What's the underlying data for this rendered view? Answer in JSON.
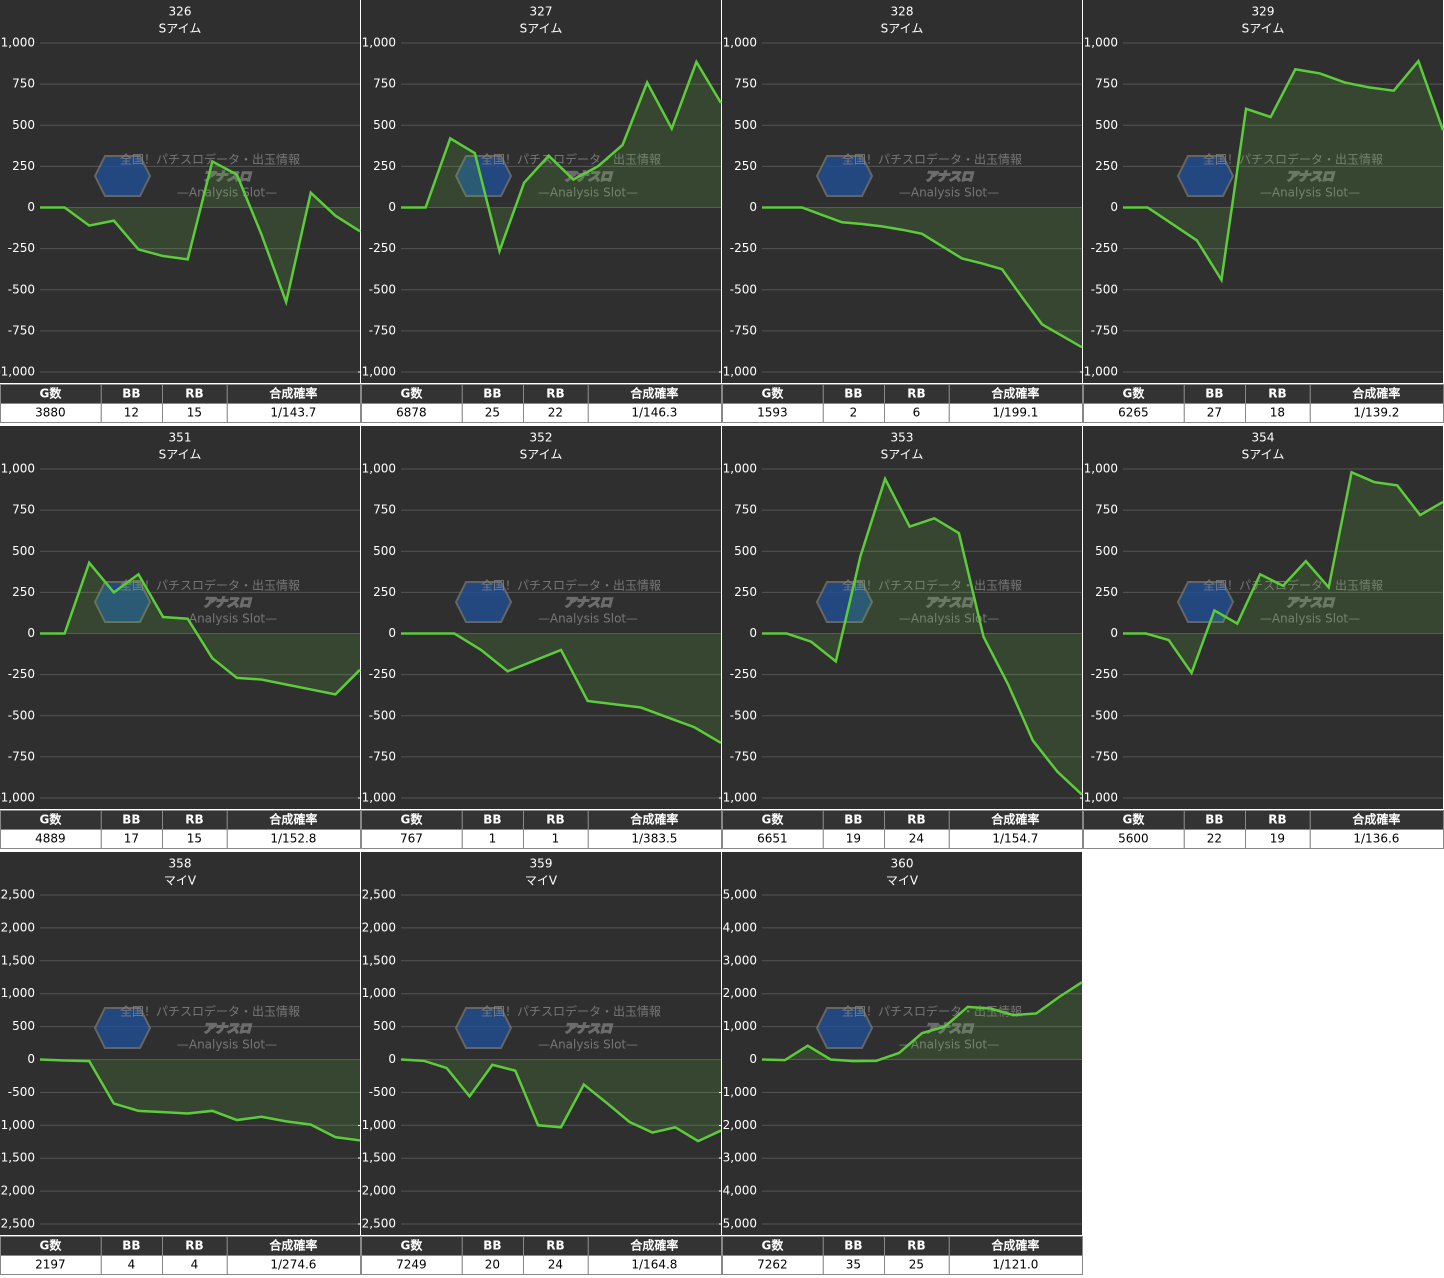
{
  "watermark": {
    "top": "全国！パチスロデータ・出玉情報",
    "logo": "アナスロ",
    "bottom": "—Analysis Slot—"
  },
  "table_headers": [
    "G数",
    "BB",
    "RB",
    "合成確率"
  ],
  "chart_data": [
    {
      "type": "line",
      "title": "326",
      "subtitle": "Sアイム",
      "color": "#5ccc3a",
      "zero_color": "#cc2222",
      "grid": true,
      "ylim": [
        -1000,
        1000
      ],
      "yticks": [
        {
          "value": 1000,
          "label": "1,000"
        },
        750,
        500,
        250,
        0,
        -250,
        -500,
        -750,
        {
          "value": -1000,
          "label": "-1,000"
        }
      ],
      "values": [
        0,
        0,
        -110,
        -80,
        -255,
        -295,
        -315,
        280,
        200,
        -165,
        -575,
        90,
        -50,
        -145
      ]
    },
    {
      "type": "line",
      "title": "327",
      "subtitle": "Sアイム",
      "color": "#5ccc3a",
      "zero_color": "#cc2222",
      "grid": true,
      "ylim": [
        -1000,
        1000
      ],
      "yticks": [
        {
          "value": 1000,
          "label": "1,000"
        },
        750,
        500,
        250,
        0,
        -250,
        -500,
        -750,
        {
          "value": -1000,
          "label": "-1,000"
        }
      ],
      "values": [
        0,
        0,
        420,
        330,
        -265,
        150,
        315,
        170,
        250,
        380,
        760,
        480,
        885,
        635
      ]
    },
    {
      "type": "line",
      "title": "328",
      "subtitle": "Sアイム",
      "color": "#5ccc3a",
      "zero_color": "#cc2222",
      "grid": true,
      "ylim": [
        -1000,
        1000
      ],
      "yticks": [
        {
          "value": 1000,
          "label": "1,000"
        },
        750,
        500,
        250,
        0,
        -250,
        -500,
        -750,
        {
          "value": -1000,
          "label": "-1,000"
        }
      ],
      "values": [
        0,
        0,
        0,
        -45,
        -90,
        -100,
        -115,
        -135,
        -160,
        -235,
        -310,
        -340,
        -375,
        -545,
        -710,
        -780,
        -850
      ]
    },
    {
      "type": "line",
      "title": "329",
      "subtitle": "Sアイム",
      "color": "#5ccc3a",
      "zero_color": "#cc2222",
      "grid": true,
      "ylim": [
        -1000,
        1000
      ],
      "yticks": [
        {
          "value": 1000,
          "label": "1,000"
        },
        750,
        500,
        250,
        0,
        -250,
        -500,
        -750,
        {
          "value": -1000,
          "label": "-1,000"
        }
      ],
      "values": [
        0,
        0,
        -100,
        -200,
        -440,
        600,
        550,
        840,
        815,
        760,
        730,
        710,
        890,
        470
      ]
    },
    {
      "type": "line",
      "title": "351",
      "subtitle": "Sアイム",
      "color": "#5ccc3a",
      "zero_color": "#cc2222",
      "grid": true,
      "ylim": [
        -1000,
        1000
      ],
      "yticks": [
        {
          "value": 1000,
          "label": "1,000"
        },
        750,
        500,
        250,
        0,
        -250,
        -500,
        -750,
        {
          "value": -1000,
          "label": "-1,000"
        }
      ],
      "values": [
        0,
        0,
        430,
        250,
        360,
        100,
        90,
        -150,
        -270,
        -280,
        -310,
        -340,
        -370,
        -220
      ]
    },
    {
      "type": "line",
      "title": "352",
      "subtitle": "Sアイム",
      "color": "#5ccc3a",
      "zero_color": "#cc2222",
      "grid": true,
      "ylim": [
        -1000,
        1000
      ],
      "yticks": [
        {
          "value": 1000,
          "label": "1,000"
        },
        750,
        500,
        250,
        0,
        -250,
        -500,
        -750,
        {
          "value": -1000,
          "label": "-1,000"
        }
      ],
      "values": [
        0,
        0,
        0,
        -100,
        -230,
        -165,
        -100,
        -410,
        -430,
        -450,
        -510,
        -570,
        -665
      ]
    },
    {
      "type": "line",
      "title": "353",
      "subtitle": "Sアイム",
      "color": "#5ccc3a",
      "zero_color": "#cc2222",
      "grid": true,
      "ylim": [
        -1000,
        1000
      ],
      "yticks": [
        {
          "value": 1000,
          "label": "1,000"
        },
        750,
        500,
        250,
        0,
        -250,
        -500,
        -750,
        {
          "value": -1000,
          "label": "-1,000"
        }
      ],
      "values": [
        0,
        0,
        -50,
        -170,
        470,
        940,
        650,
        700,
        610,
        -20,
        -310,
        -650,
        -840,
        -980
      ]
    },
    {
      "type": "line",
      "title": "354",
      "subtitle": "Sアイム",
      "color": "#5ccc3a",
      "zero_color": "#cc2222",
      "grid": true,
      "ylim": [
        -1000,
        1000
      ],
      "yticks": [
        {
          "value": 1000,
          "label": "1,000"
        },
        750,
        500,
        250,
        0,
        -250,
        -500,
        -750,
        {
          "value": -1000,
          "label": "-1,000"
        }
      ],
      "values": [
        0,
        0,
        -40,
        -240,
        140,
        60,
        360,
        290,
        440,
        280,
        980,
        920,
        900,
        720,
        800
      ]
    },
    {
      "type": "line",
      "title": "358",
      "subtitle": "マイV",
      "color": "#5ccc3a",
      "zero_color": "#cc2222",
      "grid": true,
      "ylim": [
        -2500,
        2500
      ],
      "yticks": [
        {
          "value": 2500,
          "label": "2,500"
        },
        {
          "value": 2000,
          "label": "2,000"
        },
        {
          "value": 1500,
          "label": "1,500"
        },
        {
          "value": 1000,
          "label": "1,000"
        },
        500,
        0,
        -500,
        {
          "value": -1000,
          "label": "-1,000"
        },
        {
          "value": -1500,
          "label": "-1,500"
        },
        {
          "value": -2000,
          "label": "-2,000"
        },
        {
          "value": -2500,
          "label": "-2,500"
        }
      ],
      "values": [
        0,
        -15,
        -25,
        -670,
        -780,
        -800,
        -820,
        -780,
        -920,
        -870,
        -940,
        -990,
        -1180,
        -1230
      ]
    },
    {
      "type": "line",
      "title": "359",
      "subtitle": "マイV",
      "color": "#5ccc3a",
      "zero_color": "#cc2222",
      "grid": true,
      "ylim": [
        -2500,
        2500
      ],
      "yticks": [
        {
          "value": 2500,
          "label": "2,500"
        },
        {
          "value": 2000,
          "label": "2,000"
        },
        {
          "value": 1500,
          "label": "1,500"
        },
        {
          "value": 1000,
          "label": "1,000"
        },
        500,
        0,
        -500,
        {
          "value": -1000,
          "label": "-1,000"
        },
        {
          "value": -1500,
          "label": "-1,500"
        },
        {
          "value": -2000,
          "label": "-2,000"
        },
        {
          "value": -2500,
          "label": "-2,500"
        }
      ],
      "values": [
        0,
        -20,
        -130,
        -560,
        -80,
        -170,
        -1000,
        -1030,
        -380,
        -660,
        -950,
        -1110,
        -1030,
        -1240,
        -1080
      ]
    },
    {
      "type": "line",
      "title": "360",
      "subtitle": "マイV",
      "color": "#5ccc3a",
      "zero_color": "#cc2222",
      "grid": true,
      "ylim": [
        -5000,
        5000
      ],
      "yticks": [
        {
          "value": 5000,
          "label": "5,000"
        },
        {
          "value": 4000,
          "label": "4,000"
        },
        {
          "value": 3000,
          "label": "3,000"
        },
        {
          "value": 2000,
          "label": "2,000"
        },
        {
          "value": 1000,
          "label": "1,000"
        },
        0,
        {
          "value": -1000,
          "label": "-1,000"
        },
        {
          "value": -2000,
          "label": "-2,000"
        },
        {
          "value": -3000,
          "label": "-3,000"
        },
        {
          "value": -4000,
          "label": "-4,000"
        },
        {
          "value": -5000,
          "label": "-5,000"
        }
      ],
      "values": [
        0,
        -20,
        420,
        0,
        -50,
        -40,
        200,
        800,
        1000,
        1600,
        1550,
        1350,
        1400,
        1900,
        2350
      ]
    }
  ],
  "tables": [
    [
      3880,
      12,
      15,
      "1/143.7"
    ],
    [
      6878,
      25,
      22,
      "1/146.3"
    ],
    [
      1593,
      2,
      6,
      "1/199.1"
    ],
    [
      6265,
      27,
      18,
      "1/139.2"
    ],
    [
      4889,
      17,
      15,
      "1/152.8"
    ],
    [
      767,
      1,
      1,
      "1/383.5"
    ],
    [
      6651,
      19,
      24,
      "1/154.7"
    ],
    [
      5600,
      22,
      19,
      "1/136.6"
    ],
    [
      2197,
      4,
      4,
      "1/274.6"
    ],
    [
      7249,
      20,
      24,
      "1/164.8"
    ],
    [
      7262,
      35,
      25,
      "1/121.0"
    ]
  ]
}
